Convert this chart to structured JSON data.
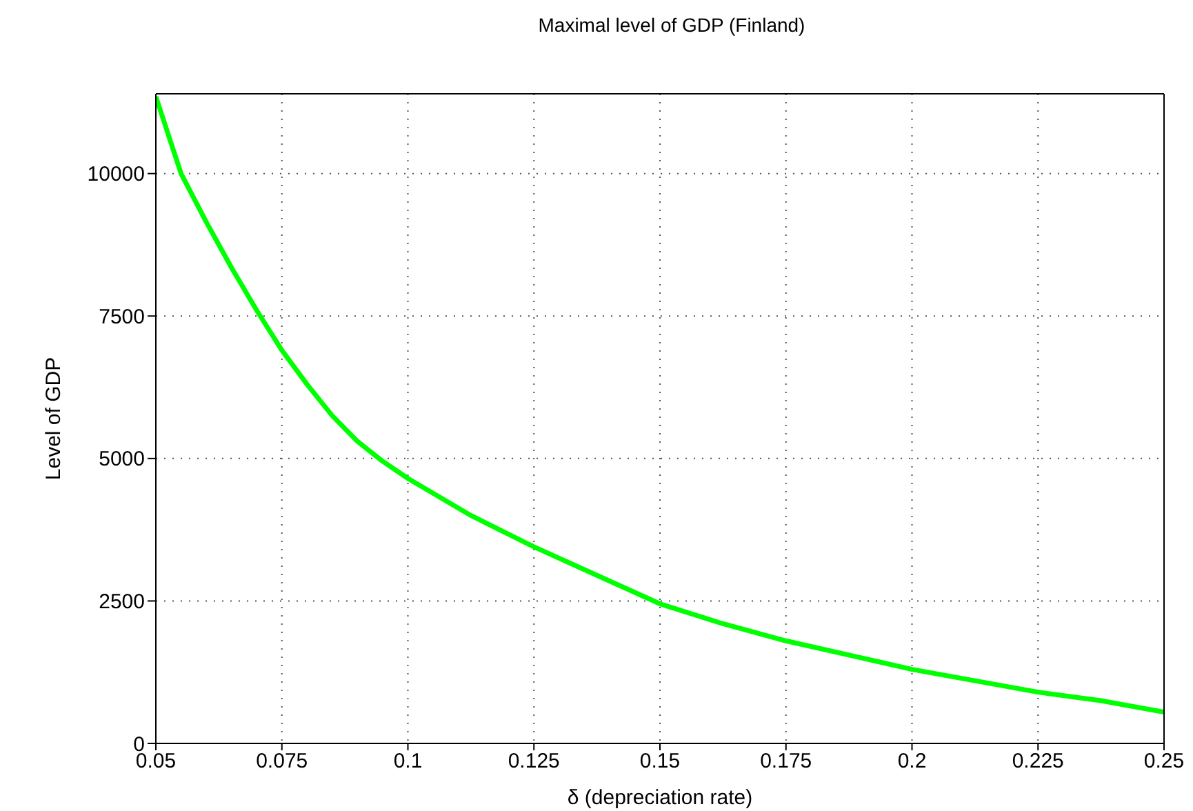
{
  "chart_data": {
    "type": "line",
    "title": "Maximal level of GDP (Finland)",
    "xlabel": "δ (depreciation rate)",
    "ylabel": "Level of GDP",
    "x": [
      0.05,
      0.055,
      0.06,
      0.0625,
      0.065,
      0.07,
      0.075,
      0.08,
      0.085,
      0.09,
      0.095,
      0.1,
      0.1125,
      0.125,
      0.1375,
      0.15,
      0.1625,
      0.175,
      0.1875,
      0.2,
      0.2125,
      0.225,
      0.2375,
      0.25
    ],
    "series": [
      {
        "color": "#00ff00",
        "values": [
          11350,
          10000,
          9150,
          8750,
          8350,
          7600,
          6900,
          6300,
          5750,
          5300,
          4950,
          4650,
          4000,
          3450,
          2950,
          2450,
          2100,
          1800,
          1550,
          1300,
          1100,
          900,
          750,
          550
        ]
      }
    ],
    "xlim": [
      0.05,
      0.25
    ],
    "xticks": [
      0.05,
      0.075,
      0.1,
      0.125,
      0.15,
      0.175,
      0.2,
      0.225,
      0.25
    ],
    "ylim": [
      0,
      11400
    ],
    "yticks": [
      0,
      2500,
      5000,
      7500,
      10000
    ],
    "grid": true,
    "line_style": "solid",
    "marker": "none"
  }
}
